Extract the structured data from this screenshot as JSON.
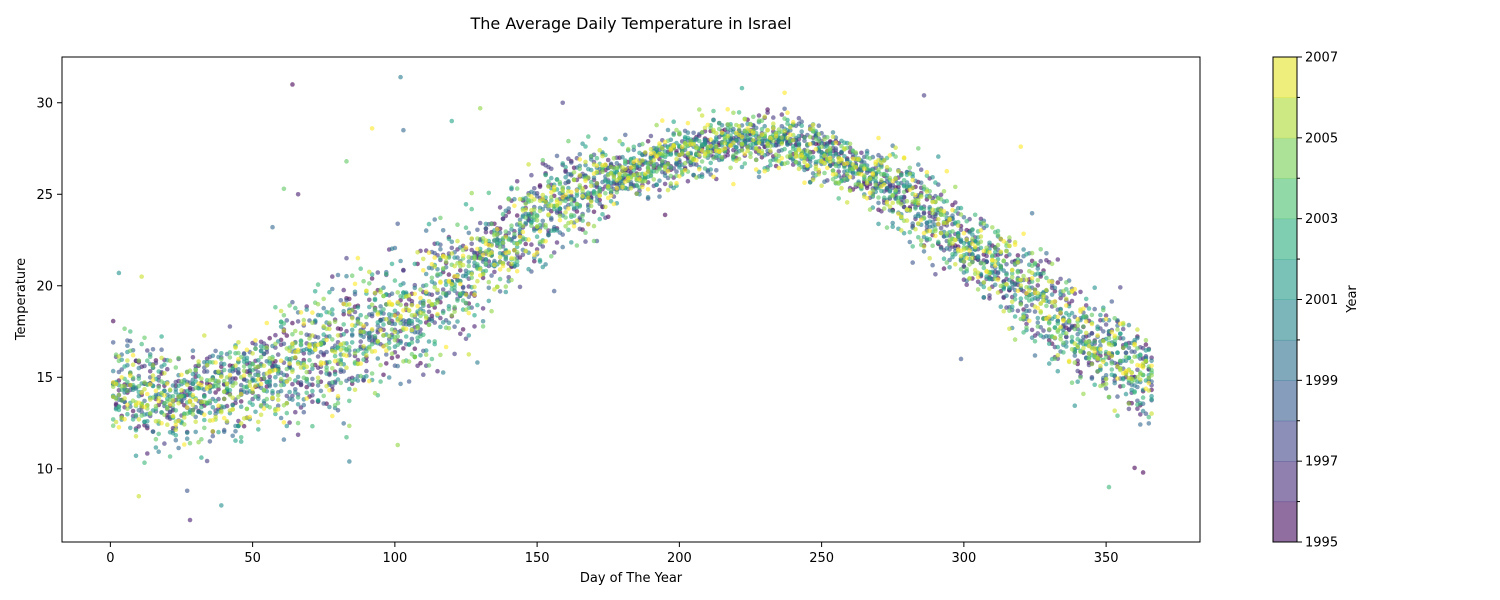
{
  "chart_data": {
    "type": "scatter",
    "title": "The Average Daily Temperature in Israel",
    "xlabel": "Day of The Year",
    "ylabel": "Temperature",
    "xlim": [
      -17,
      383
    ],
    "ylim": [
      6,
      32.5
    ],
    "xticks": [
      0,
      50,
      100,
      150,
      200,
      250,
      300,
      350
    ],
    "yticks": [
      10,
      15,
      20,
      25,
      30
    ],
    "grid": false,
    "colormap": "viridis",
    "point_alpha": 0.6,
    "colorbar": {
      "label": "Year",
      "min": 1995,
      "max": 2007,
      "ticks": [
        1995,
        1997,
        1999,
        2001,
        2003,
        2005,
        2007
      ],
      "levels": 12
    },
    "series_by_year": [
      1995,
      1996,
      1997,
      1998,
      1999,
      2000,
      2001,
      2002,
      2003,
      2004,
      2005,
      2006,
      2007
    ],
    "seasonal_profile": [
      [
        0,
        14.5
      ],
      [
        20,
        13.8
      ],
      [
        30,
        14.0
      ],
      [
        45,
        14.6
      ],
      [
        60,
        15.5
      ],
      [
        80,
        16.5
      ],
      [
        100,
        18.2
      ],
      [
        120,
        20.0
      ],
      [
        140,
        22.5
      ],
      [
        160,
        24.8
      ],
      [
        180,
        26.0
      ],
      [
        200,
        27.2
      ],
      [
        220,
        28.0
      ],
      [
        240,
        27.8
      ],
      [
        260,
        26.5
      ],
      [
        280,
        24.8
      ],
      [
        300,
        22.5
      ],
      [
        320,
        20.0
      ],
      [
        340,
        17.5
      ],
      [
        365,
        15.0
      ]
    ],
    "outliers": [
      {
        "x": 64,
        "y": 31.0
      },
      {
        "x": 102,
        "y": 31.4
      },
      {
        "x": 130,
        "y": 29.7
      },
      {
        "x": 159,
        "y": 30.0
      },
      {
        "x": 120,
        "y": 29.0
      },
      {
        "x": 92,
        "y": 28.6
      },
      {
        "x": 103,
        "y": 28.5
      },
      {
        "x": 83,
        "y": 26.8
      },
      {
        "x": 28,
        "y": 7.2
      },
      {
        "x": 39,
        "y": 8.0
      },
      {
        "x": 10,
        "y": 8.5
      },
      {
        "x": 27,
        "y": 8.8
      },
      {
        "x": 351,
        "y": 9.0
      },
      {
        "x": 363,
        "y": 9.8
      },
      {
        "x": 84,
        "y": 10.4
      },
      {
        "x": 101,
        "y": 11.3
      },
      {
        "x": 286,
        "y": 30.4
      },
      {
        "x": 222,
        "y": 30.8
      },
      {
        "x": 320,
        "y": 27.6
      },
      {
        "x": 57,
        "y": 23.2
      },
      {
        "x": 61,
        "y": 25.3
      },
      {
        "x": 66,
        "y": 25.0
      },
      {
        "x": 3,
        "y": 20.7
      },
      {
        "x": 11,
        "y": 20.5
      },
      {
        "x": 299,
        "y": 16.0
      }
    ]
  }
}
